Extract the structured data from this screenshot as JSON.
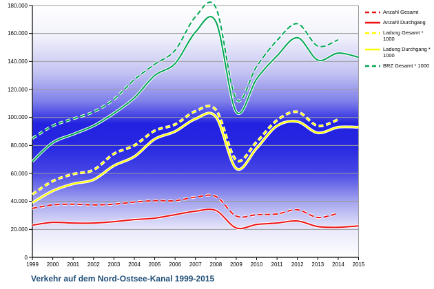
{
  "title": "Verkehr auf dem Nord-Ostsee-Kanal 1999-2015",
  "title_color": "#1f4e79",
  "axis_color": "#000000",
  "gridline_color": "#9a9a9a",
  "chart_data": {
    "type": "line",
    "x": [
      1999,
      2000,
      2001,
      2002,
      2003,
      2004,
      2005,
      2006,
      2007,
      2008,
      2009,
      2010,
      2011,
      2012,
      2013,
      2014,
      2015
    ],
    "xtick_labels": [
      "1999",
      "2000",
      "2001",
      "2002",
      "2003",
      "2004",
      "2005",
      "2006",
      "2007",
      "2008",
      "2009",
      "2010",
      "2011",
      "2012",
      "2013",
      "2014",
      "2015"
    ],
    "ylim": [
      0,
      180000
    ],
    "ytick_interval": 20000,
    "ytick_labels_top_to_bottom": [
      "180.000",
      "160.000",
      "140.000",
      "120.000",
      "100.000",
      "80.000",
      "60.000",
      "40.000",
      "20.000",
      "0"
    ],
    "grid": true,
    "legend_position": "top-right",
    "plot_bg_gradient": [
      [
        "0%",
        "#ffffff"
      ],
      [
        "12%",
        "#f2f2fc"
      ],
      [
        "27%",
        "#c2c2f2"
      ],
      [
        "38%",
        "#8080ea"
      ],
      [
        "47%",
        "#2222e0"
      ],
      [
        "56%",
        "#2828e2"
      ],
      [
        "66%",
        "#4545e5"
      ],
      [
        "78%",
        "#a5a5ef"
      ],
      [
        "89%",
        "#e8e8fa"
      ],
      [
        "100%",
        "#ffffff"
      ]
    ],
    "series": [
      {
        "name": "Anzahl Gesamt",
        "legend": "Anzahl Gesamt",
        "color": "#ee1111",
        "style": "dashed",
        "values": [
          35000,
          37500,
          38000,
          37500,
          38000,
          39500,
          40500,
          40500,
          43000,
          43500,
          29500,
          30500,
          31000,
          34000,
          28500,
          31500,
          null
        ]
      },
      {
        "name": "Anzahl Durchgang",
        "legend": "Anzahl Durchgang",
        "color": "#ee1111",
        "style": "solid",
        "values": [
          23000,
          25000,
          24500,
          24500,
          25500,
          27000,
          28000,
          30500,
          33000,
          33500,
          21000,
          23500,
          24500,
          26000,
          22000,
          21500,
          22500
        ]
      },
      {
        "name": "Ladung Gesamt * 1000",
        "legend": "Ladung Gesamt * 1000",
        "color": "#ffff00",
        "style": "dashed",
        "values": [
          45000,
          54500,
          59500,
          62500,
          74000,
          80000,
          90500,
          95000,
          104500,
          105500,
          69500,
          82500,
          98000,
          104000,
          94000,
          98500,
          null
        ]
      },
      {
        "name": "Ladung Durchgang * 1000",
        "legend": "Ladung Durchgang *\n1000",
        "color": "#ffff00",
        "style": "solid",
        "values": [
          39000,
          47500,
          52500,
          55500,
          65500,
          72000,
          84500,
          90000,
          99000,
          100500,
          63500,
          78000,
          94000,
          97000,
          89000,
          93000,
          93000
        ]
      },
      {
        "name": "BRZ Gesamt * 1000",
        "legend": "BRZ Gesamt * 1000",
        "color": "#00a651",
        "style": "dashed",
        "values": [
          85000,
          94000,
          99000,
          104000,
          113000,
          127000,
          138000,
          148000,
          172000,
          178500,
          113000,
          136500,
          155000,
          167000,
          151000,
          155500,
          null
        ]
      },
      {
        "name": "",
        "legend": null,
        "color": "#00a651",
        "style": "solid",
        "values": [
          68500,
          82000,
          88000,
          94000,
          103000,
          114000,
          130000,
          138500,
          161000,
          168500,
          104000,
          127500,
          144000,
          157000,
          141000,
          146000,
          143000
        ]
      }
    ]
  }
}
